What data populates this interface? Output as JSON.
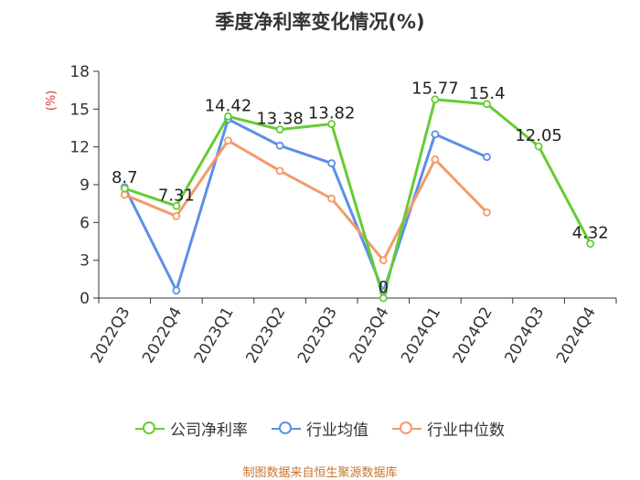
{
  "title": "季度净利率变化情况(%)",
  "source": "制图数据来自恒生聚源数据库",
  "colors": {
    "company": "#66cc33",
    "industry_avg": "#5b8fe8",
    "industry_median": "#f39b6b",
    "axis": "#333333"
  },
  "chart_data": {
    "type": "line",
    "title": "季度净利率变化情况(%)",
    "ylabel": "(%)",
    "xlabel": "",
    "ylim": [
      0,
      18
    ],
    "yticks": [
      0,
      3,
      6,
      9,
      12,
      15,
      18
    ],
    "grid": false,
    "legend_position": "bottom",
    "categories": [
      "2022Q3",
      "2022Q4",
      "2023Q1",
      "2023Q2",
      "2023Q3",
      "2023Q4",
      "2024Q1",
      "2024Q2",
      "2024Q3",
      "2024Q4"
    ],
    "series": [
      {
        "name": "公司净利率",
        "key": "company",
        "values": [
          8.7,
          7.31,
          14.42,
          13.38,
          13.82,
          0,
          15.77,
          15.4,
          12.05,
          4.32
        ],
        "labels": [
          "8.7",
          "7.31",
          "14.42",
          "13.38",
          "13.82",
          "0",
          "15.77",
          "15.4",
          "12.05",
          "4.32"
        ]
      },
      {
        "name": "行业均值",
        "key": "industry_avg",
        "values": [
          8.8,
          0.6,
          14.2,
          12.1,
          10.7,
          0.5,
          13.0,
          11.2,
          null,
          null
        ]
      },
      {
        "name": "行业中位数",
        "key": "industry_median",
        "values": [
          8.2,
          6.5,
          12.5,
          10.1,
          7.9,
          3.0,
          11.0,
          6.8,
          null,
          null
        ]
      }
    ]
  }
}
